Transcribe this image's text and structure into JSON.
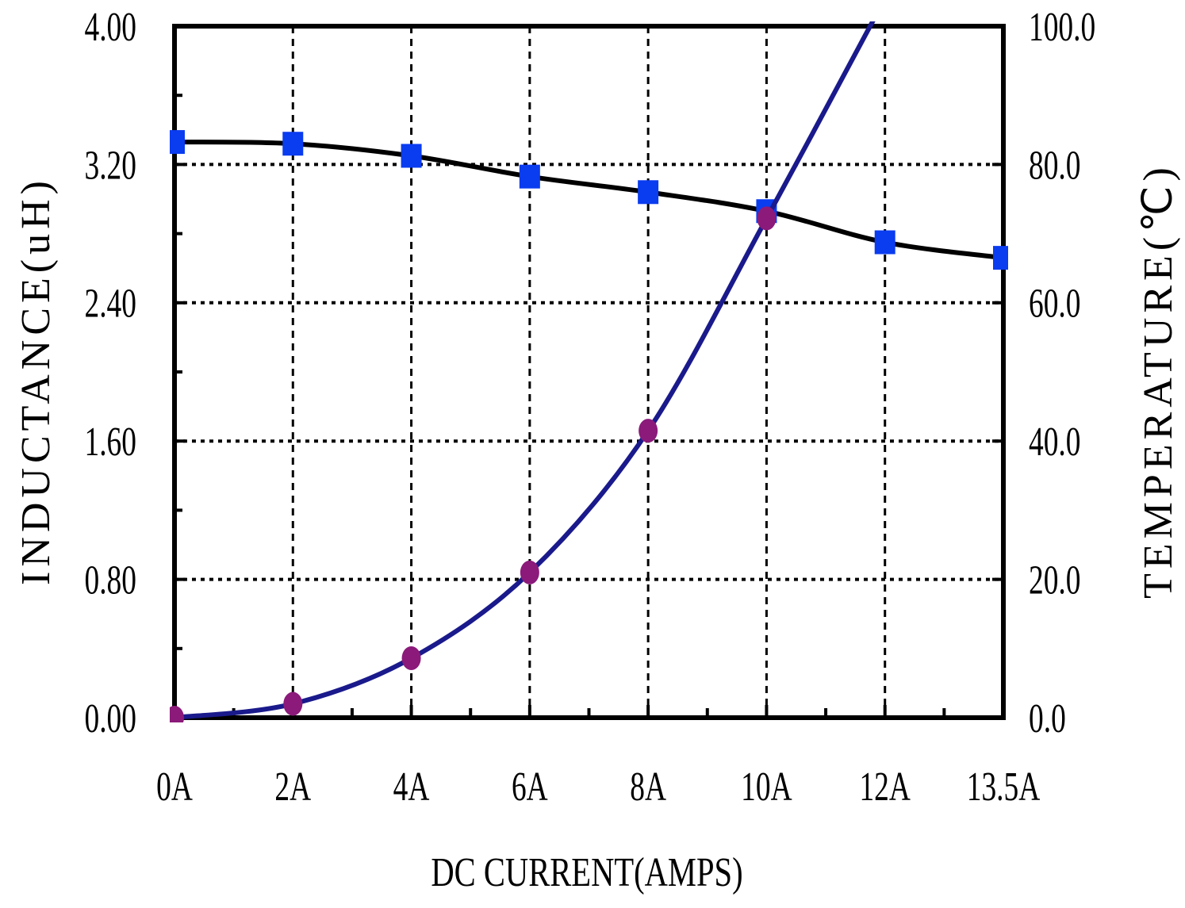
{
  "chart_data": {
    "type": "line",
    "xlabel": "DC CURRENT(AMPS)",
    "ylabel": "INDUCTANCE(uH)",
    "y2label": "TEMPERATURE(℃)",
    "categories": [
      "0A",
      "2A",
      "4A",
      "6A",
      "8A",
      "10A",
      "12A",
      "13.5A"
    ],
    "series": [
      {
        "name": "Inductance",
        "color": "#000000",
        "marker_color": "#0a3cf0",
        "marker": "square",
        "values": [
          3.33,
          3.32,
          3.25,
          3.13,
          3.04,
          2.93,
          2.75,
          2.66
        ]
      },
      {
        "name": "Temperature",
        "color": "#1a1a8c",
        "marker_color": "#8b1a7a",
        "marker": "circle",
        "axis": "y2",
        "values": [
          0,
          2,
          8.6,
          21,
          41.5,
          72.2,
          104,
          null
        ]
      }
    ],
    "ylim": [
      0,
      4
    ],
    "yticks": [
      {
        "value": 0,
        "label": "0.00"
      },
      {
        "value": 0.8,
        "label": "0.80"
      },
      {
        "value": 1.6,
        "label": "1.60"
      },
      {
        "value": 2.4,
        "label": "2.40"
      },
      {
        "value": 3.2,
        "label": "3.20"
      },
      {
        "value": 4,
        "label": "4.00"
      }
    ],
    "y2lim": [
      0,
      100
    ],
    "y2ticks": [
      {
        "value": 0,
        "label": "0.0"
      },
      {
        "value": 20,
        "label": "20.0"
      },
      {
        "value": 40,
        "label": "40.0"
      },
      {
        "value": 60,
        "label": "60.0"
      },
      {
        "value": 80,
        "label": "80.0"
      },
      {
        "value": 100,
        "label": "100.0"
      }
    ],
    "grid": true
  }
}
